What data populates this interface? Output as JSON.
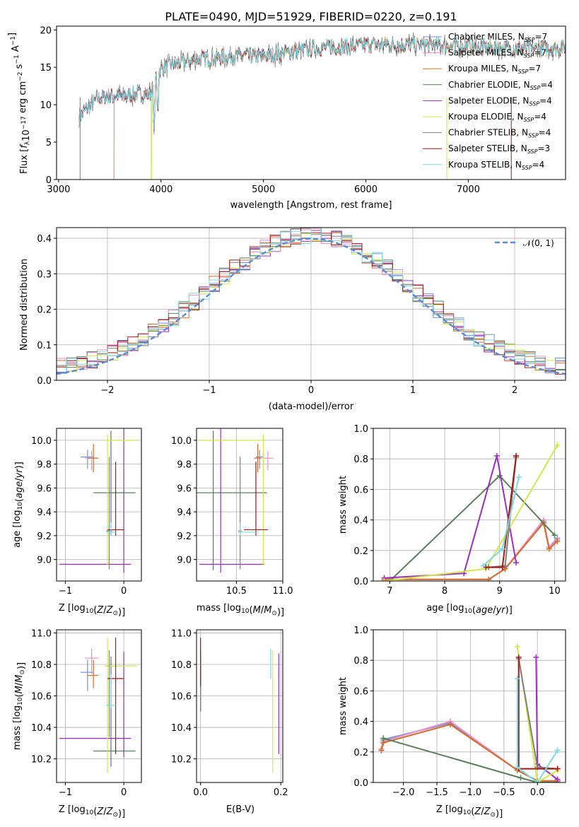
{
  "figure_title": "PLATE=0490, MJD=51929, FIBERID=0220, z=0.191",
  "legend_label_normal": "𝒩(0, 1)",
  "chart_data": [
    {
      "type": "line",
      "name": "spectra",
      "title": "PLATE=0490, MJD=51929, FIBERID=0220, z=0.191",
      "xlabel": "wavelength [Angstrom, rest frame]",
      "ylabel": "Flux [f_λ 10^-17 erg cm^-2 s^-1 A^-1]",
      "xlim": [
        2980,
        7950
      ],
      "ylim": [
        0,
        20.5
      ],
      "xticks": [
        3000,
        4000,
        5000,
        6000,
        7000
      ],
      "yticks": [
        0,
        5,
        10,
        15,
        20
      ],
      "grid": false,
      "legend_position": "right",
      "spectrum_start": 3200,
      "continuum": {
        "x": [
          3200,
          3400,
          3700,
          3900,
          4000,
          4300,
          4700,
          5000,
          5500,
          6000,
          6500,
          7000,
          7500,
          7950
        ],
        "y": [
          8.5,
          11.0,
          11.3,
          11.5,
          15.0,
          16.0,
          16.5,
          16.5,
          17.5,
          18.0,
          18.0,
          17.8,
          17.5,
          17.6
        ]
      },
      "series": [
        {
          "name": "Chabrier MILES, N_SSP=7",
          "color": "#6f93d9",
          "start": 3200
        },
        {
          "name": "Salpeter MILES, N_SSP=7",
          "color": "#e98fc7",
          "start": 3200
        },
        {
          "name": "Kroupa MILES, N_SSP=7",
          "color": "#d46c2c",
          "start": 3540
        },
        {
          "name": "Chabrier ELODIE, N_SSP=4",
          "color": "#5a7d5a",
          "start": 3200
        },
        {
          "name": "Salpeter ELODIE, N_SSP=4",
          "color": "#9a30b8",
          "start": 3200
        },
        {
          "name": "Kroupa ELODIE, N_SSP=4",
          "color": "#d4e64a",
          "start": 3900
        },
        {
          "name": "Chabrier STELIB, N_SSP=4",
          "color": "#7f7f7f",
          "start": 3200
        },
        {
          "name": "Salpeter STELIB, N_SSP=3",
          "color": "#a01818",
          "start": 3200
        },
        {
          "name": "Kroupa STELIB, N_SSP=4",
          "color": "#7ed8dd",
          "start": 3200
        }
      ]
    },
    {
      "type": "line",
      "name": "residual-histogram",
      "xlabel": "(data-model)/error",
      "ylabel": "Normed distribution",
      "xlim": [
        -2.5,
        2.5
      ],
      "ylim": [
        0,
        0.43
      ],
      "xticks": [
        -2,
        -1,
        0,
        1,
        2
      ],
      "yticks": [
        0.0,
        0.1,
        0.2,
        0.3,
        0.4
      ],
      "grid": true,
      "legend_position": "top-right",
      "normal": {
        "name": "𝒩(0, 1)",
        "color": "#5b8ad6",
        "dash": true
      }
    },
    {
      "type": "scatter",
      "name": "age-vs-Z",
      "xlabel": "Z [log10(Z/Z⊙)]",
      "ylabel": "age [log10(age/yr)]",
      "xlim": [
        -1.15,
        0.3
      ],
      "ylim": [
        8.82,
        10.1
      ],
      "xticks": [
        -1,
        0
      ],
      "yticks": [
        9.0,
        9.2,
        9.4,
        9.6,
        9.8,
        10.0
      ],
      "grid": true,
      "points": [
        {
          "color": "#6f93d9",
          "x": -0.62,
          "y": 9.86,
          "xe": [
            0.12,
            0.1
          ],
          "ye": [
            0.1,
            0.06
          ]
        },
        {
          "color": "#e98fc7",
          "x": -0.55,
          "y": 9.85,
          "xe": [
            0.12,
            0.12
          ],
          "ye": [
            0.1,
            0.06
          ]
        },
        {
          "color": "#d46c2c",
          "x": -0.52,
          "y": 9.85,
          "xe": [
            0.1,
            0.08
          ],
          "ye": [
            0.12,
            0.12
          ]
        },
        {
          "color": "#5a7d5a",
          "x": -0.22,
          "y": 9.56,
          "xe": [
            0.3,
            0.42
          ],
          "ye": [
            0.36,
            0.52
          ]
        },
        {
          "color": "#9a30b8",
          "x": 0.0,
          "y": 8.96,
          "xe": [
            1.1,
            0.12
          ],
          "ye": [
            0.07,
            1.15
          ]
        },
        {
          "color": "#d4e64a",
          "x": -0.28,
          "y": 10.0,
          "xe": [
            0.05,
            0.5
          ],
          "ye": [
            1.05,
            0.05
          ]
        },
        {
          "color": "#7f7f7f",
          "x": -0.25,
          "y": 9.24,
          "xe": [
            0.05,
            0.05
          ],
          "ye": [
            0.32,
            0.62
          ]
        },
        {
          "color": "#a01818",
          "x": -0.14,
          "y": 9.25,
          "xe": [
            0.14,
            0.14
          ],
          "ye": [
            0.05,
            0.57
          ]
        },
        {
          "color": "#7ed8dd",
          "x": -0.22,
          "y": 9.23,
          "xe": [
            0.08,
            0.08
          ],
          "ye": [
            0.03,
            0.08
          ]
        }
      ]
    },
    {
      "type": "scatter",
      "name": "age-vs-mass",
      "xlabel": "mass [log10(M/M⊙)]",
      "xlim": [
        10.07,
        11.0
      ],
      "ylim": [
        8.82,
        10.1
      ],
      "xticks": [
        10.5,
        11.0
      ],
      "yticks": [
        9.0,
        9.2,
        9.4,
        9.6,
        9.8,
        10.0
      ],
      "grid": true,
      "points": [
        {
          "color": "#6f93d9",
          "x": 10.75,
          "y": 9.86,
          "xe": [
            0.04,
            0.04
          ],
          "ye": [
            0.1,
            0.06
          ]
        },
        {
          "color": "#e98fc7",
          "x": 10.84,
          "y": 9.85,
          "xe": [
            0.06,
            0.06
          ],
          "ye": [
            0.1,
            0.06
          ]
        },
        {
          "color": "#d46c2c",
          "x": 10.73,
          "y": 9.85,
          "xe": [
            0.04,
            0.04
          ],
          "ye": [
            0.12,
            0.12
          ]
        },
        {
          "color": "#5a7d5a",
          "x": 10.25,
          "y": 9.56,
          "xe": [
            0.2,
            0.58
          ],
          "ye": [
            0.65,
            0.52
          ]
        },
        {
          "color": "#9a30b8",
          "x": 10.33,
          "y": 8.96,
          "xe": [
            0.23,
            0.47
          ],
          "ye": [
            0.07,
            1.15
          ]
        },
        {
          "color": "#d4e64a",
          "x": 10.79,
          "y": 10.0,
          "xe": [
            0.7,
            0.0
          ],
          "ye": [
            1.05,
            0.05
          ]
        },
        {
          "color": "#7f7f7f",
          "x": 10.54,
          "y": 9.24,
          "xe": [
            0.02,
            0.02
          ],
          "ye": [
            0.32,
            0.62
          ]
        },
        {
          "color": "#a01818",
          "x": 10.71,
          "y": 9.25,
          "xe": [
            0.13,
            0.13
          ],
          "ye": [
            0.05,
            0.57
          ]
        },
        {
          "color": "#7ed8dd",
          "x": 10.54,
          "y": 9.23,
          "xe": [
            0.02,
            0.2
          ],
          "ye": [
            0.03,
            0.08
          ]
        }
      ]
    },
    {
      "type": "line",
      "name": "mass-weight-vs-age",
      "xlabel": "age [log10(age/yr)]",
      "ylabel": "mass weight",
      "xlim": [
        6.7,
        10.2
      ],
      "ylim": [
        0,
        1.0
      ],
      "xticks": [
        7,
        8,
        9,
        10
      ],
      "yticks": [
        0.0,
        0.2,
        0.4,
        0.6,
        0.8,
        1.0
      ],
      "grid": true,
      "series": [
        {
          "name": "Chabrier MILES",
          "color": "#6f93d9",
          "x": [
            6.9,
            8.8,
            9.1,
            9.8,
            9.9,
            10.05
          ],
          "y": [
            0.01,
            0.01,
            0.08,
            0.39,
            0.22,
            0.28
          ]
        },
        {
          "name": "Salpeter MILES",
          "color": "#e98fc7",
          "x": [
            6.9,
            8.8,
            9.1,
            9.8,
            9.9,
            10.05
          ],
          "y": [
            0.01,
            0.01,
            0.08,
            0.4,
            0.22,
            0.27
          ]
        },
        {
          "name": "Kroupa MILES",
          "color": "#d46c2c",
          "x": [
            6.9,
            8.8,
            9.1,
            9.8,
            9.9,
            10.05
          ],
          "y": [
            0.01,
            0.01,
            0.08,
            0.38,
            0.21,
            0.26
          ]
        },
        {
          "name": "Chabrier ELODIE",
          "color": "#5a7d5a",
          "x": [
            7.0,
            9.0,
            10.0
          ],
          "y": [
            0.0,
            0.69,
            0.3
          ]
        },
        {
          "name": "Salpeter ELODIE",
          "color": "#9a30b8",
          "x": [
            6.9,
            8.35,
            8.95,
            9.3
          ],
          "y": [
            0.02,
            0.05,
            0.82,
            0.12
          ]
        },
        {
          "name": "Kroupa ELODIE",
          "color": "#d4e64a",
          "x": [
            6.9,
            8.75,
            10.05
          ],
          "y": [
            0.0,
            0.08,
            0.89
          ]
        },
        {
          "name": "Chabrier STELIB",
          "color": "#7f7f7f",
          "x": [
            8.8,
            9.1,
            9.3
          ],
          "y": [
            0.09,
            0.1,
            0.81
          ]
        },
        {
          "name": "Salpeter STELIB",
          "color": "#a01818",
          "x": [
            8.75,
            9.05,
            9.3
          ],
          "y": [
            0.09,
            0.09,
            0.82
          ]
        },
        {
          "name": "Kroupa STELIB",
          "color": "#7ed8dd",
          "x": [
            8.7,
            9.05,
            9.35
          ],
          "y": [
            0.1,
            0.21,
            0.68
          ]
        }
      ]
    },
    {
      "type": "scatter",
      "name": "mass-vs-Z",
      "xlabel": "Z [log10(Z/Z⊙)]",
      "ylabel": "mass [log10(M/M⊙)]",
      "xlim": [
        -1.15,
        0.3
      ],
      "ylim": [
        10.05,
        11.02
      ],
      "xticks": [
        -1,
        0
      ],
      "yticks": [
        10.2,
        10.4,
        10.6,
        10.8,
        11.0
      ],
      "grid": true,
      "points": [
        {
          "color": "#6f93d9",
          "x": -0.62,
          "y": 10.75,
          "xe": [
            0.12,
            0.1
          ],
          "ye": [
            0.12,
            0.08
          ]
        },
        {
          "color": "#e98fc7",
          "x": -0.55,
          "y": 10.84,
          "xe": [
            0.12,
            0.12
          ],
          "ye": [
            0.1,
            0.06
          ]
        },
        {
          "color": "#d46c2c",
          "x": -0.52,
          "y": 10.73,
          "xe": [
            0.1,
            0.08
          ],
          "ye": [
            0.08,
            0.1
          ]
        },
        {
          "color": "#5a7d5a",
          "x": -0.22,
          "y": 10.25,
          "xe": [
            0.3,
            0.42
          ],
          "ye": [
            0.1,
            0.6
          ]
        },
        {
          "color": "#9a30b8",
          "x": 0.0,
          "y": 10.33,
          "xe": [
            1.1,
            0.12
          ],
          "ye": [
            0.12,
            0.55
          ]
        },
        {
          "color": "#d4e64a",
          "x": -0.28,
          "y": 10.79,
          "xe": [
            0.05,
            0.5
          ],
          "ye": [
            0.68,
            0.18
          ]
        },
        {
          "color": "#7f7f7f",
          "x": -0.25,
          "y": 10.54,
          "xe": [
            0.05,
            0.05
          ],
          "ye": [
            0.2,
            0.35
          ]
        },
        {
          "color": "#a01818",
          "x": -0.14,
          "y": 10.71,
          "xe": [
            0.14,
            0.14
          ],
          "ye": [
            0.48,
            0.26
          ]
        },
        {
          "color": "#7ed8dd",
          "x": -0.22,
          "y": 10.54,
          "xe": [
            0.08,
            0.08
          ],
          "ye": [
            0.02,
            0.2
          ]
        }
      ]
    },
    {
      "type": "scatter",
      "name": "mass-vs-ebv",
      "xlabel": "E(B-V)",
      "xlim": [
        -0.01,
        0.205
      ],
      "ylim": [
        10.05,
        11.02
      ],
      "xticks": [
        0.0,
        0.2
      ],
      "yticks": [
        10.2,
        10.4,
        10.6,
        10.8,
        11.0
      ],
      "grid": true,
      "points": [
        {
          "color": "#6f93d9",
          "x": 0.0,
          "y": 10.75,
          "xe": [
            0,
            0
          ],
          "ye": [
            0.24,
            0.08
          ]
        },
        {
          "color": "#e98fc7",
          "x": 0.0,
          "y": 10.84,
          "xe": [
            0,
            0
          ],
          "ye": [
            0.1,
            0.06
          ]
        },
        {
          "color": "#d46c2c",
          "x": 0.0,
          "y": 10.73,
          "xe": [
            0,
            0
          ],
          "ye": [
            0.08,
            0.1
          ]
        },
        {
          "color": "#5a7d5a",
          "x": 0.0,
          "y": 10.6,
          "xe": [
            0,
            0
          ],
          "ye": [
            0.1,
            0.25
          ]
        },
        {
          "color": "#9a30b8",
          "x": 0.195,
          "y": 10.6,
          "xe": [
            0,
            0
          ],
          "ye": [
            0.37,
            0.27
          ]
        },
        {
          "color": "#d4e64a",
          "x": 0.18,
          "y": 10.79,
          "xe": [
            0,
            0
          ],
          "ye": [
            0.68,
            0.1
          ]
        },
        {
          "color": "#7f7f7f",
          "x": 0.0,
          "y": 10.54,
          "xe": [
            0,
            0
          ],
          "ye": [
            0.03,
            0.35
          ]
        },
        {
          "color": "#a01818",
          "x": 0.0,
          "y": 10.71,
          "xe": [
            0,
            0
          ],
          "ye": [
            0.05,
            0.26
          ]
        },
        {
          "color": "#7ed8dd",
          "x": 0.175,
          "y": 10.76,
          "xe": [
            0,
            0
          ],
          "ye": [
            0.05,
            0.14
          ]
        }
      ]
    },
    {
      "type": "line",
      "name": "mass-weight-vs-Z",
      "xlabel": "Z [log10(Z/Z⊙)]",
      "ylabel": "mass weight",
      "xlim": [
        -2.45,
        0.42
      ],
      "ylim": [
        0,
        1.0
      ],
      "xticks": [
        -2.0,
        -1.5,
        -1.0,
        -0.5,
        0.0
      ],
      "yticks": [
        0.0,
        0.2,
        0.4,
        0.6,
        0.8,
        1.0
      ],
      "grid": true,
      "series": [
        {
          "name": "Chabrier MILES",
          "color": "#6f93d9",
          "x": [
            -2.33,
            -2.3,
            -1.3,
            -0.3,
            0.0,
            0.3
          ],
          "y": [
            0.21,
            0.28,
            0.39,
            0.08,
            0.01,
            0.01
          ]
        },
        {
          "name": "Salpeter MILES",
          "color": "#e98fc7",
          "x": [
            -2.33,
            -2.3,
            -1.3,
            -0.3,
            0.0,
            0.3
          ],
          "y": [
            0.22,
            0.27,
            0.4,
            0.08,
            0.01,
            0.01
          ]
        },
        {
          "name": "Kroupa MILES",
          "color": "#d46c2c",
          "x": [
            -2.33,
            -2.3,
            -1.3,
            -0.3,
            0.0,
            0.3
          ],
          "y": [
            0.21,
            0.26,
            0.38,
            0.08,
            0.01,
            0.01
          ]
        },
        {
          "name": "Chabrier ELODIE",
          "color": "#5a7d5a",
          "x": [
            -2.3,
            -0.25,
            0.0,
            0.3
          ],
          "y": [
            0.29,
            0.03,
            0.0,
            0.0
          ]
        },
        {
          "name": "Salpeter ELODIE",
          "color": "#9a30b8",
          "x": [
            -0.02,
            0.0,
            0.3
          ],
          "y": [
            0.82,
            0.12,
            0.02
          ]
        },
        {
          "name": "Kroupa ELODIE",
          "color": "#d4e64a",
          "x": [
            -0.3,
            0.0,
            0.3
          ],
          "y": [
            0.89,
            0.0,
            0.08
          ]
        },
        {
          "name": "Chabrier STELIB",
          "color": "#7f7f7f",
          "x": [
            -0.28,
            0.0,
            0.3
          ],
          "y": [
            0.81,
            0.1,
            0.09
          ]
        },
        {
          "name": "Salpeter STELIB",
          "color": "#a01818",
          "x": [
            -0.28,
            -0.28,
            0.3
          ],
          "y": [
            0.82,
            0.09,
            0.09
          ]
        },
        {
          "name": "Kroupa STELIB",
          "color": "#7ed8dd",
          "x": [
            -0.3,
            -0.3,
            0.0,
            0.3
          ],
          "y": [
            0.68,
            0.1,
            0.0,
            0.21
          ]
        }
      ]
    }
  ]
}
